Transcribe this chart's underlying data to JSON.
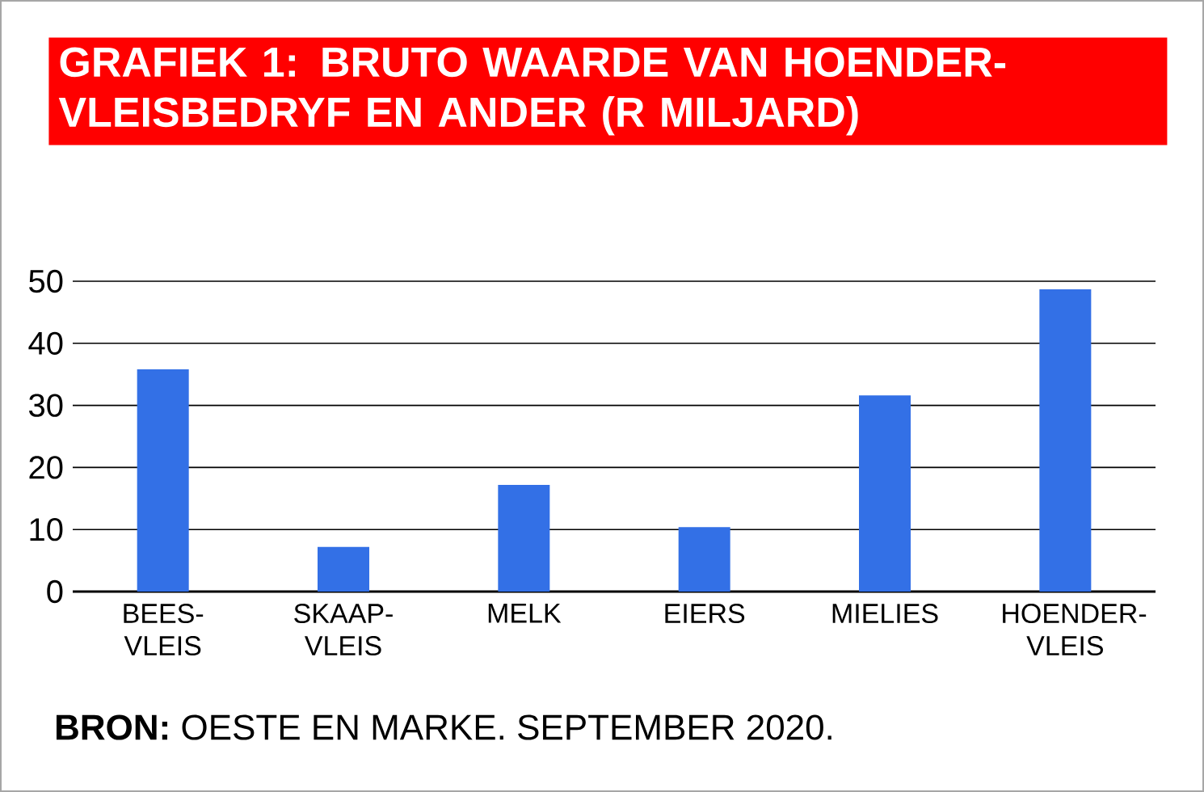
{
  "chart_data": {
    "type": "bar",
    "title": "GRAFIEK 1: BRUTO WAARDE VAN HOENDER-VLEISBEDRYF EN ANDER  (R MILJARD)",
    "categories": [
      "BEES-VLEIS",
      "SKAAP-VLEIS",
      "MELK",
      "EIERS",
      "MIELIES",
      "HOENDER-VLEIS"
    ],
    "values": [
      35.8,
      7.2,
      17.2,
      10.4,
      31.6,
      48.7
    ],
    "color": "#3370e6",
    "ylim": [
      0,
      50
    ],
    "yticks": [
      0,
      10,
      20,
      30,
      40,
      50
    ],
    "grid": "y",
    "annotations": [
      "**BRON:** OESTE EN MARKE. SEPTEMBER 2020."
    ]
  }
}
